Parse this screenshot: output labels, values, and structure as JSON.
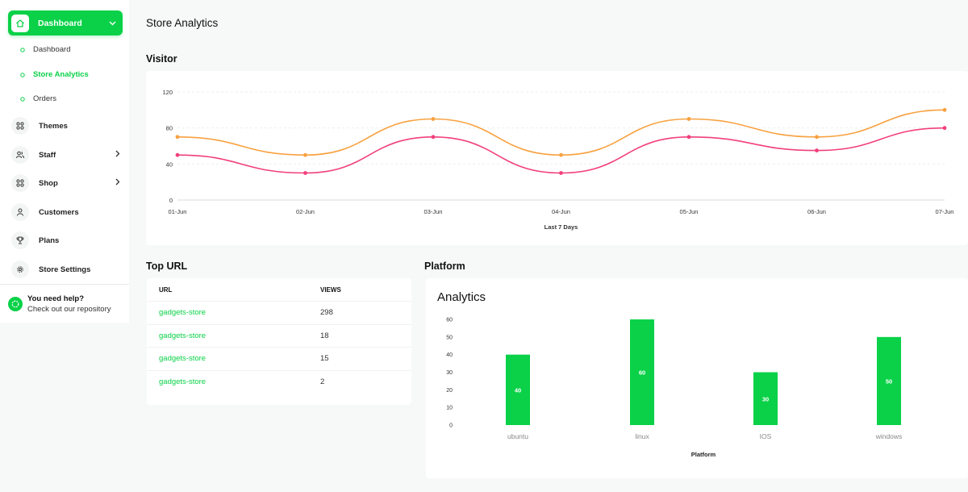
{
  "sidebar": {
    "active": {
      "label": "Dashboard",
      "icon": "home-icon"
    },
    "sub_items": [
      {
        "label": "Dashboard",
        "active": false
      },
      {
        "label": "Store Analytics",
        "active": true
      },
      {
        "label": "Orders",
        "active": false
      }
    ],
    "items": [
      {
        "label": "Themes",
        "icon": "grid-icon",
        "has_arrow": false
      },
      {
        "label": "Staff",
        "icon": "users-icon",
        "has_arrow": true
      },
      {
        "label": "Shop",
        "icon": "grid-icon",
        "has_arrow": true
      },
      {
        "label": "Customers",
        "icon": "user-icon",
        "has_arrow": false
      },
      {
        "label": "Plans",
        "icon": "trophy-icon",
        "has_arrow": false
      },
      {
        "label": "Store Settings",
        "icon": "gear-icon",
        "has_arrow": false
      }
    ],
    "help": {
      "title": "You need help?",
      "subtitle": "Check out our repository",
      "icon": "help-icon"
    }
  },
  "page": {
    "title": "Store Analytics",
    "visitor_title": "Visitor",
    "top_url_title": "Top URL",
    "platform_title": "Platform"
  },
  "top_url": {
    "headers": [
      "URL",
      "VIEWS"
    ],
    "rows": [
      {
        "url": "gadgets-store",
        "views": "298"
      },
      {
        "url": "gadgets-store",
        "views": "18"
      },
      {
        "url": "gadgets-store",
        "views": "15"
      },
      {
        "url": "gadgets-store",
        "views": "2"
      }
    ]
  },
  "colors": {
    "accent": "#0ad148",
    "series_orange": "#f8a13f",
    "series_pink": "#f23f7a"
  },
  "chart_data": [
    {
      "type": "line",
      "title": "",
      "xlabel": "Last 7 Days",
      "ylabel": "",
      "x": [
        "01-Jun",
        "02-Jun",
        "03-Jun",
        "04-Jun",
        "05-Jun",
        "06-Jun",
        "07-Jun"
      ],
      "ylim": [
        0,
        120
      ],
      "yticks": [
        0,
        40,
        80,
        120
      ],
      "grid": true,
      "series": [
        {
          "values": [
            70,
            50,
            90,
            50,
            90,
            70,
            100
          ],
          "color": "#f8a13f"
        },
        {
          "values": [
            50,
            30,
            70,
            30,
            70,
            55,
            80
          ],
          "color": "#f23f7a"
        }
      ]
    },
    {
      "type": "bar",
      "title": "Analytics",
      "xlabel": "Platform",
      "ylabel": "",
      "categories": [
        "ubuntu",
        "linux",
        "IOS",
        "windows"
      ],
      "values": [
        40,
        60,
        30,
        50
      ],
      "data_labels": [
        "40",
        "60",
        "30",
        "50"
      ],
      "ylim": [
        0,
        60
      ],
      "yticks": [
        0,
        10,
        20,
        30,
        40,
        50,
        60
      ],
      "color": "#0ad148",
      "grid": false
    }
  ]
}
